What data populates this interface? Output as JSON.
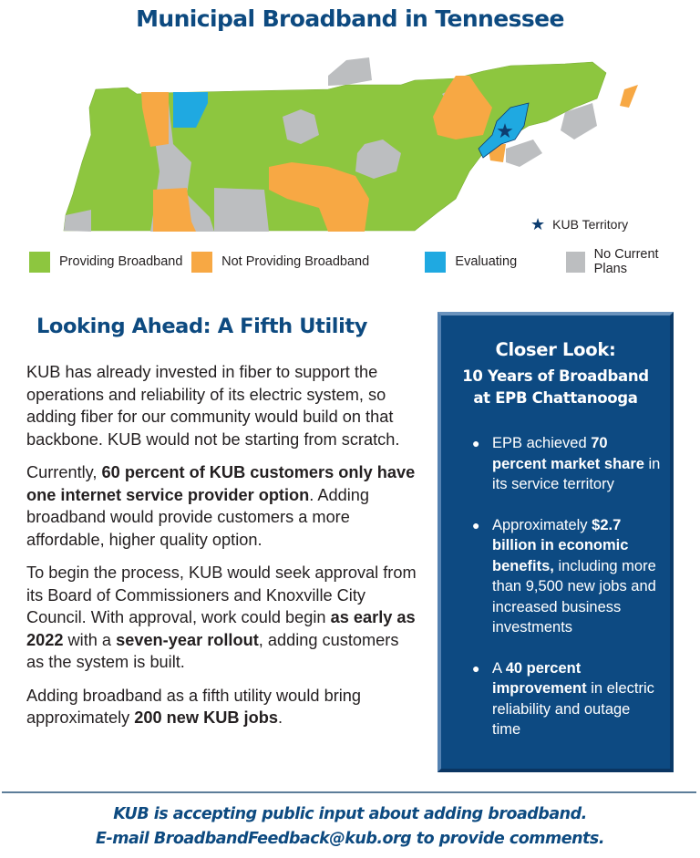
{
  "header": {
    "title": "Municipal Broadband in Tennessee"
  },
  "map": {
    "kub_marker": {
      "icon": "star-icon",
      "label": "KUB Territory",
      "color": "#0d3d70"
    },
    "legend": [
      {
        "label": "Providing Broadband",
        "color": "#8dc63f"
      },
      {
        "label": "Not Providing Broadband",
        "color": "#f7a844"
      },
      {
        "label": "Evaluating",
        "color": "#1fa9e1"
      },
      {
        "label": "No Current Plans",
        "color": "#bcbec0"
      }
    ]
  },
  "main": {
    "heading": "Looking Ahead: A Fifth Utility",
    "paragraphs": [
      {
        "segments": [
          {
            "t": "KUB has already invested in fiber to support the operations and reliability of its electric system, so adding fiber for our community would build on that backbone. KUB would not be starting from scratch.",
            "b": false
          }
        ]
      },
      {
        "segments": [
          {
            "t": "Currently, ",
            "b": false
          },
          {
            "t": "60 percent of KUB customers only have one internet service provider option",
            "b": true
          },
          {
            "t": ". Adding broadband would provide customers a more affordable, higher quality option.",
            "b": false
          }
        ]
      },
      {
        "segments": [
          {
            "t": "To begin the process, KUB would seek approval from its Board of Commissioners and Knoxville City Council. With approval, work could begin ",
            "b": false
          },
          {
            "t": "as early as 2022",
            "b": true
          },
          {
            "t": " with a ",
            "b": false
          },
          {
            "t": "seven-year rollout",
            "b": true
          },
          {
            "t": ", adding customers as the system is built.",
            "b": false
          }
        ]
      },
      {
        "segments": [
          {
            "t": "Adding broadband as a fifth utility would bring approximately ",
            "b": false
          },
          {
            "t": "200 new KUB jobs",
            "b": true
          },
          {
            "t": ".",
            "b": false
          }
        ]
      }
    ]
  },
  "sidebar": {
    "title": "Closer Look:",
    "subtitle_line1": "10 Years of Broadband",
    "subtitle_line2": "at EPB Chattanooga",
    "bullet_glyph": "●",
    "items": [
      {
        "segments": [
          {
            "t": "EPB achieved ",
            "b": false
          },
          {
            "t": "70 percent market share",
            "b": true
          },
          {
            "t": " in its service territory",
            "b": false
          }
        ]
      },
      {
        "segments": [
          {
            "t": "Approximately ",
            "b": false
          },
          {
            "t": "$2.7 billion in economic benefits,",
            "b": true
          },
          {
            "t": " including more than 9,500 new jobs and increased business investments",
            "b": false
          }
        ]
      },
      {
        "segments": [
          {
            "t": "A ",
            "b": false
          },
          {
            "t": "40 percent improvement",
            "b": true
          },
          {
            "t": " in electric reliability and outage time",
            "b": false
          }
        ]
      }
    ]
  },
  "footer": {
    "line1": "KUB is accepting public input about adding broadband.",
    "line2": "E-mail BroadbandFeedback@kub.org to provide comments."
  }
}
